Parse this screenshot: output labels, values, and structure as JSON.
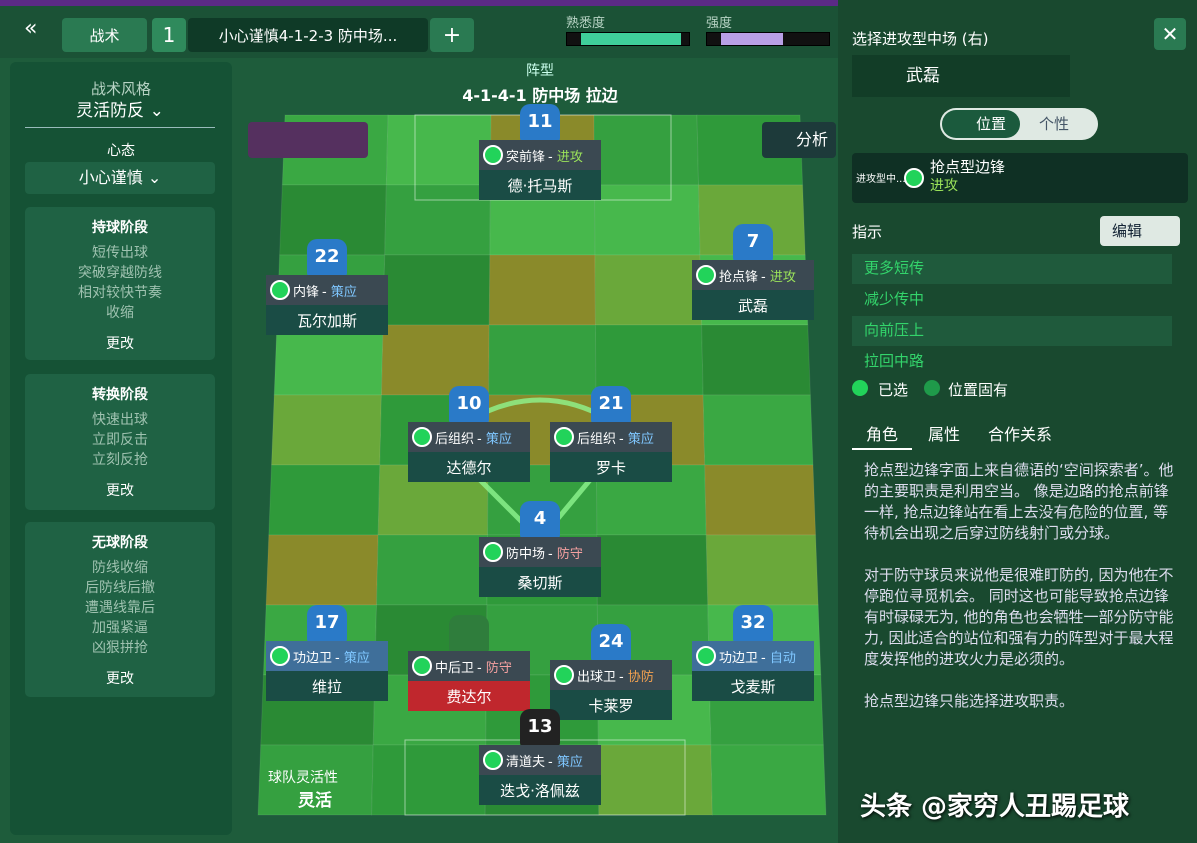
{
  "top_bar": {
    "tab": "战术",
    "tab_number": "1",
    "tactic_name": "小心谨慎4-1-2-3 防中场...",
    "add": "+",
    "familiarity_label": "熟悉度",
    "intensity_label": "强度"
  },
  "left_panel": {
    "style_label": "战术风格",
    "style": "灵活防反",
    "mentality_label": "心态",
    "mentality": "小心谨慎",
    "phases": [
      {
        "title": "持球阶段",
        "items": [
          "短传出球",
          "突破穿越防线",
          "相对较快节奏",
          "收缩"
        ],
        "action": "更改"
      },
      {
        "title": "转换阶段",
        "items": [
          "快速出球",
          "立即反击",
          "立刻反抢"
        ],
        "action": "更改"
      },
      {
        "title": "无球阶段",
        "items": [
          "防线收缩",
          "后防线后撤",
          "遭遇线靠后",
          "加强紧逼",
          "凶狠拼抢"
        ],
        "action": "更改"
      }
    ]
  },
  "pitch": {
    "formation_label": "阵型",
    "formation": "4-1-4-1 防中场 拉边",
    "analysis": "分析",
    "flexibility_label": "球队灵活性",
    "flexibility": "灵活",
    "players": [
      {
        "number": "11",
        "role": "突前锋",
        "duty": "进攻",
        "name": "德·托马斯"
      },
      {
        "number": "22",
        "role": "内锋",
        "duty": "策应",
        "name": "瓦尔加斯"
      },
      {
        "number": "7",
        "role": "抢点锋",
        "duty": "进攻",
        "name": "武磊"
      },
      {
        "number": "10",
        "role": "后组织",
        "duty": "策应",
        "name": "达德尔"
      },
      {
        "number": "21",
        "role": "后组织",
        "duty": "策应",
        "name": "罗卡"
      },
      {
        "number": "4",
        "role": "防中场",
        "duty": "防守",
        "name": "桑切斯"
      },
      {
        "number": "17",
        "role": "功边卫",
        "duty": "策应",
        "name": "维拉"
      },
      {
        "number": null,
        "role": "中后卫",
        "duty": "防守",
        "name": "费达尔"
      },
      {
        "number": "24",
        "role": "出球卫",
        "duty": "协防",
        "name": "卡莱罗"
      },
      {
        "number": "32",
        "role": "功边卫",
        "duty": "自动",
        "name": "戈麦斯"
      },
      {
        "number": "13",
        "role": "清道夫",
        "duty": "策应",
        "name": "迭戈·洛佩兹"
      }
    ]
  },
  "right_panel": {
    "title": "选择进攻型中场 (右)",
    "player": "武磊",
    "tab_position": "位置",
    "tab_personality": "个性",
    "role_short": "进攻型中...",
    "role": "抢点型边锋",
    "duty": "进攻",
    "instructions_label": "指示",
    "edit": "编辑",
    "instructions": [
      "更多短传",
      "减少传中",
      "向前压上",
      "拉回中路"
    ],
    "legend_selected": "已选",
    "legend_inherent": "位置固有",
    "tabs": [
      "角色",
      "属性",
      "合作关系"
    ],
    "description": [
      "抢点型边锋字面上来自德语的‘空间探索者’。他的主要职责是利用空当。 像是边路的抢点前锋一样, 抢点边锋站在看上去没有危险的位置, 等待机会出现之后穿过防线射门或分球。",
      "对于防守球员来说他是很难盯防的, 因为他在不停跑位寻觅机会。 同时这也可能导致抢点边锋有时碌碌无为, 他的角色也会牺牲一部分防守能力, 因此适合的站位和强有力的阵型对于最大程度发挥他的进攻火力是必须的。",
      "抢点型边锋只能选择进攻职责。"
    ]
  },
  "watermark": "头条 @家穷人丑踢足球"
}
